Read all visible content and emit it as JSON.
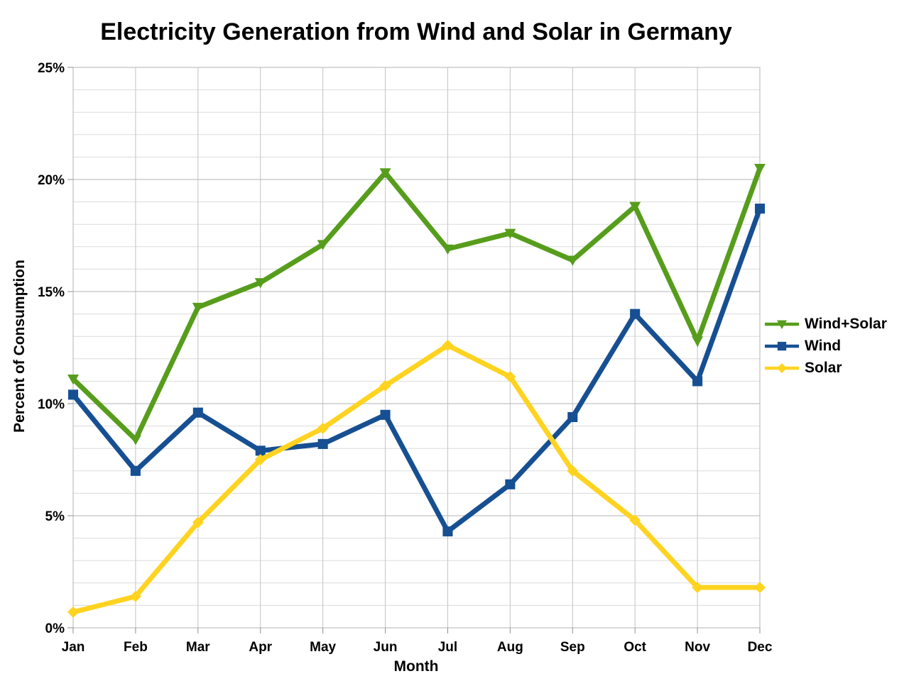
{
  "title": "Electricity Generation from Wind and Solar in Germany",
  "chart_data": {
    "type": "line",
    "title": "Electricity Generation from Wind and Solar in Germany",
    "xlabel": "Month",
    "ylabel": "Percent of Consumption",
    "x": [
      "Jan",
      "Feb",
      "Mar",
      "Apr",
      "May",
      "Jun",
      "Jul",
      "Aug",
      "Sep",
      "Oct",
      "Nov",
      "Dec"
    ],
    "y_ticks": [
      "0%",
      "5%",
      "10%",
      "15%",
      "20%",
      "25%"
    ],
    "ylim": [
      0,
      25
    ],
    "grid": {
      "minor_step": 1,
      "major_step": 5,
      "vertical": "per-month"
    },
    "legend_position": "right",
    "series": [
      {
        "name": "Wind+Solar",
        "color": "#579D1C",
        "marker": "triangle-down",
        "values": [
          11.1,
          8.4,
          14.3,
          15.4,
          17.1,
          20.3,
          16.9,
          17.6,
          16.4,
          18.8,
          12.8,
          20.5
        ]
      },
      {
        "name": "Wind",
        "color": "#164F92",
        "marker": "square",
        "values": [
          10.4,
          7.0,
          9.6,
          7.9,
          8.2,
          9.5,
          4.3,
          6.4,
          9.4,
          14.0,
          11.0,
          18.7
        ]
      },
      {
        "name": "Solar",
        "color": "#FFD320",
        "marker": "diamond",
        "values": [
          0.7,
          1.4,
          4.7,
          7.5,
          8.9,
          10.8,
          12.6,
          11.2,
          7.0,
          4.8,
          1.8,
          1.8
        ]
      }
    ]
  }
}
